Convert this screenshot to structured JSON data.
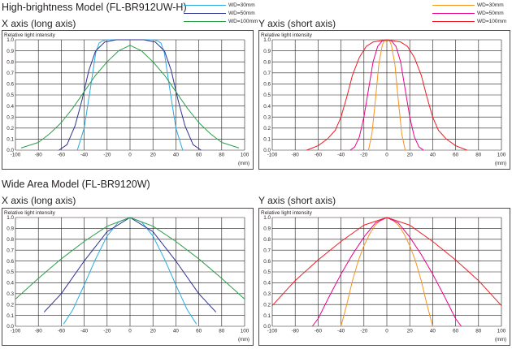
{
  "sections": {
    "top": {
      "title": "High-brightness Model (FL-BR912UW-H)"
    },
    "bottom": {
      "title": "Wide Area Model (FL-BR9120W)"
    }
  },
  "legend_x": [
    {
      "label": "WD=30mm",
      "color": "#29aae1"
    },
    {
      "label": "WD=50mm",
      "color": "#2e3192"
    },
    {
      "label": "WD=100mm",
      "color": "#2b9e48"
    }
  ],
  "legend_y": [
    {
      "label": "WD=30mm",
      "color": "#f7941d"
    },
    {
      "label": "WD=50mm",
      "color": "#ec008c"
    },
    {
      "label": "WD=100mm",
      "color": "#ed1c24"
    }
  ],
  "chart_data": [
    {
      "type": "line",
      "section": "High-brightness Model (FL-BR912UW-H)",
      "title": "X axis (long axis)",
      "ylabel": "Relative light intensity",
      "xlabel": "(mm)",
      "xlim": [
        -100,
        100
      ],
      "ylim": [
        0,
        1.0
      ],
      "x_ticks": [
        "-100",
        "-80",
        "-60",
        "-40",
        "-20",
        "0",
        "20",
        "40",
        "60",
        "80",
        "100"
      ],
      "y_ticks": [
        "0.0",
        "0.1",
        "0.2",
        "0.3",
        "0.4",
        "0.5",
        "0.6",
        "0.7",
        "0.8",
        "0.9",
        "1.0"
      ],
      "series": [
        {
          "name": "WD=30mm",
          "color": "#29aae1",
          "x": [
            -46,
            -40,
            -34,
            -30,
            -27,
            -24,
            -20,
            20,
            24,
            27,
            30,
            34,
            40,
            46
          ],
          "y": [
            0,
            0.2,
            0.6,
            0.88,
            0.97,
            0.99,
            1.0,
            1.0,
            0.99,
            0.97,
            0.88,
            0.6,
            0.2,
            0
          ]
        },
        {
          "name": "WD=50mm",
          "color": "#2e3192",
          "x": [
            -62,
            -55,
            -48,
            -42,
            -36,
            -30,
            -22,
            -12,
            0,
            12,
            22,
            30,
            36,
            42,
            48,
            55,
            62
          ],
          "y": [
            0,
            0.05,
            0.22,
            0.45,
            0.72,
            0.9,
            0.98,
            1.0,
            1.0,
            1.0,
            0.98,
            0.9,
            0.72,
            0.45,
            0.22,
            0.05,
            0
          ]
        },
        {
          "name": "WD=100mm",
          "color": "#2b9e48",
          "x": [
            -95,
            -80,
            -70,
            -60,
            -50,
            -40,
            -30,
            -20,
            -10,
            0,
            10,
            20,
            30,
            40,
            50,
            60,
            70,
            80,
            95
          ],
          "y": [
            0.02,
            0.07,
            0.15,
            0.25,
            0.38,
            0.53,
            0.68,
            0.8,
            0.9,
            0.95,
            0.9,
            0.8,
            0.68,
            0.53,
            0.38,
            0.25,
            0.15,
            0.07,
            0.02
          ]
        }
      ]
    },
    {
      "type": "line",
      "section": "High-brightness Model (FL-BR912UW-H)",
      "title": "Y axis (short axis)",
      "ylabel": "Relative light intensity",
      "xlabel": "(mm)",
      "xlim": [
        -100,
        100
      ],
      "ylim": [
        0,
        1.0
      ],
      "x_ticks": [
        "-100",
        "-80",
        "-60",
        "-40",
        "-20",
        "0",
        "20",
        "40",
        "60",
        "80",
        "100"
      ],
      "y_ticks": [
        "0.0",
        "0.1",
        "0.2",
        "0.3",
        "0.4",
        "0.5",
        "0.6",
        "0.7",
        "0.8",
        "0.9",
        "1.0"
      ],
      "series": [
        {
          "name": "WD=30mm",
          "color": "#f7941d",
          "x": [
            -16,
            -13,
            -10,
            -7,
            -4,
            -2,
            0,
            2,
            4,
            7,
            10,
            13,
            16
          ],
          "y": [
            0,
            0.15,
            0.45,
            0.78,
            0.95,
            1.0,
            0.98,
            1.0,
            0.95,
            0.78,
            0.45,
            0.15,
            0
          ]
        },
        {
          "name": "WD=50mm",
          "color": "#ec008c",
          "x": [
            -32,
            -28,
            -24,
            -20,
            -16,
            -12,
            -8,
            -4,
            0,
            4,
            8,
            12,
            16,
            20,
            24,
            28,
            32
          ],
          "y": [
            0,
            0.03,
            0.12,
            0.3,
            0.55,
            0.8,
            0.94,
            0.99,
            1.0,
            0.99,
            0.94,
            0.8,
            0.55,
            0.3,
            0.12,
            0.03,
            0
          ]
        },
        {
          "name": "WD=100mm",
          "color": "#ed1c24",
          "x": [
            -70,
            -60,
            -52,
            -45,
            -40,
            -35,
            -30,
            -24,
            -18,
            -12,
            -6,
            0,
            6,
            12,
            18,
            24,
            30,
            35,
            40,
            45,
            52,
            60,
            70
          ],
          "y": [
            0,
            0.04,
            0.1,
            0.18,
            0.3,
            0.48,
            0.68,
            0.84,
            0.94,
            0.98,
            0.99,
            1.0,
            0.99,
            0.98,
            0.94,
            0.84,
            0.68,
            0.48,
            0.3,
            0.18,
            0.1,
            0.04,
            0
          ]
        }
      ]
    },
    {
      "type": "line",
      "section": "Wide Area Model (FL-BR9120W)",
      "title": "X axis (long axis)",
      "ylabel": "Relative light intensity",
      "xlabel": "(mm)",
      "xlim": [
        -100,
        100
      ],
      "ylim": [
        0,
        1.0
      ],
      "x_ticks": [
        "-100",
        "-80",
        "-60",
        "-40",
        "-20",
        "0",
        "20",
        "40",
        "60",
        "80",
        "100"
      ],
      "y_ticks": [
        "0.0",
        "0.1",
        "0.2",
        "0.3",
        "0.4",
        "0.5",
        "0.6",
        "0.7",
        "0.8",
        "0.9",
        "1.0"
      ],
      "series": [
        {
          "name": "WD=30mm",
          "color": "#29aae1",
          "x": [
            -58,
            -50,
            -40,
            -30,
            -20,
            -10,
            0,
            10,
            20,
            30,
            40,
            50,
            58
          ],
          "y": [
            0.02,
            0.15,
            0.38,
            0.62,
            0.83,
            0.96,
            1.0,
            0.96,
            0.83,
            0.62,
            0.38,
            0.15,
            0.02
          ]
        },
        {
          "name": "WD=50mm",
          "color": "#2e3192",
          "x": [
            -75,
            -60,
            -40,
            -20,
            0,
            20,
            40,
            60,
            75
          ],
          "y": [
            0.13,
            0.3,
            0.6,
            0.87,
            1.0,
            0.87,
            0.6,
            0.3,
            0.13
          ]
        },
        {
          "name": "WD=100mm",
          "color": "#2b9e48",
          "x": [
            -100,
            -80,
            -60,
            -40,
            -20,
            0,
            20,
            40,
            60,
            80,
            100
          ],
          "y": [
            0.25,
            0.44,
            0.62,
            0.78,
            0.92,
            1.0,
            0.92,
            0.78,
            0.62,
            0.44,
            0.25
          ]
        }
      ]
    },
    {
      "type": "line",
      "section": "Wide Area Model (FL-BR9120W)",
      "title": "Y axis (short axis)",
      "ylabel": "Relative light intensity",
      "xlabel": "(mm)",
      "xlim": [
        -100,
        100
      ],
      "ylim": [
        0,
        1.0
      ],
      "x_ticks": [
        "-100",
        "-80",
        "-60",
        "-40",
        "-20",
        "0",
        "20",
        "40",
        "60",
        "80",
        "100"
      ],
      "y_ticks": [
        "0.0",
        "0.1",
        "0.2",
        "0.3",
        "0.4",
        "0.5",
        "0.6",
        "0.7",
        "0.8",
        "0.9",
        "1.0"
      ],
      "series": [
        {
          "name": "WD=30mm",
          "color": "#f7941d",
          "x": [
            -40,
            -35,
            -30,
            -25,
            -20,
            -15,
            -10,
            -5,
            0,
            5,
            10,
            15,
            20,
            25,
            30,
            35,
            40
          ],
          "y": [
            0,
            0.2,
            0.42,
            0.6,
            0.74,
            0.85,
            0.93,
            0.98,
            1.0,
            0.98,
            0.93,
            0.85,
            0.74,
            0.6,
            0.42,
            0.2,
            0
          ]
        },
        {
          "name": "WD=50mm",
          "color": "#ec008c",
          "x": [
            -65,
            -60,
            -50,
            -40,
            -30,
            -20,
            -10,
            0,
            10,
            20,
            30,
            40,
            50,
            60,
            65
          ],
          "y": [
            0,
            0.07,
            0.28,
            0.48,
            0.66,
            0.82,
            0.95,
            1.0,
            0.95,
            0.82,
            0.66,
            0.48,
            0.28,
            0.07,
            0
          ]
        },
        {
          "name": "WD=100mm",
          "color": "#ed1c24",
          "x": [
            -100,
            -80,
            -60,
            -40,
            -20,
            0,
            20,
            40,
            60,
            80,
            100
          ],
          "y": [
            0.19,
            0.42,
            0.61,
            0.78,
            0.93,
            1.0,
            0.93,
            0.78,
            0.61,
            0.42,
            0.19
          ]
        }
      ]
    }
  ]
}
